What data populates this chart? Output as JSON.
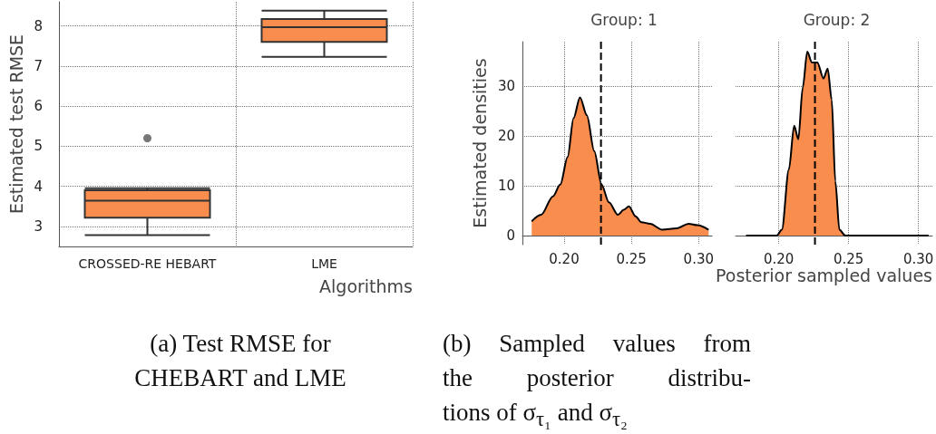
{
  "chart_data": [
    {
      "type": "box",
      "xlabel": "Algorithms",
      "ylabel": "Estimated test RMSE",
      "categories": [
        "CROSSED-RE HEBART",
        "LME"
      ],
      "color": "#f98d4e",
      "boxes": [
        {
          "low": 2.78,
          "q1": 3.22,
          "median": 3.64,
          "q3": 3.9,
          "high": 3.95,
          "outliers": [
            5.2
          ]
        },
        {
          "low": 7.23,
          "q1": 7.6,
          "median": 7.97,
          "q3": 8.17,
          "high": 8.38
        }
      ],
      "ylim": [
        2.5,
        8.6
      ],
      "yticks": [
        3,
        4,
        5,
        6,
        7,
        8
      ],
      "grid": true,
      "annotations": [
        "(a) Test RMSE for\nCHEBART and LME"
      ]
    },
    {
      "type": "area",
      "title": "Group: 1",
      "ylabel": "Estimated densities",
      "color": "#f98d4e",
      "marker": "none",
      "x": [
        0.1759,
        0.1829,
        0.1917,
        0.1972,
        0.2026,
        0.207,
        0.2118,
        0.2169,
        0.2224,
        0.2278,
        0.2333,
        0.24,
        0.2443,
        0.2482,
        0.2531,
        0.2574,
        0.264,
        0.2728,
        0.2838,
        0.2926,
        0.2991,
        0.3074
      ],
      "values": [
        2.9,
        4.2,
        7.9,
        10.3,
        15.8,
        23.6,
        27.8,
        24.2,
        17,
        10.3,
        6.7,
        4.2,
        5.2,
        5.9,
        3.9,
        2.7,
        2.4,
        1.2,
        1.5,
        2.4,
        2.1,
        1.2
      ],
      "xlim": [
        0.169,
        0.31
      ],
      "xticks": [
        {
          "value": 0.2,
          "label": "0.20"
        },
        {
          "value": 0.25,
          "label": "0.25"
        },
        {
          "value": 0.3,
          "label": "0.30"
        }
      ],
      "ylim": [
        -1.8,
        39
      ],
      "yticks": [
        0,
        10,
        20,
        30
      ],
      "grid": true,
      "ref_lines": [
        {
          "axis": "x",
          "value": 0.2274,
          "color": "#000000",
          "line_style": "dashed"
        }
      ],
      "annotations": [
        "(b) Sampled values from\nthe posterior distribu-\ntions of σ$_{τ₁}$ and σ$_{τ₂}$"
      ]
    },
    {
      "type": "area",
      "title": "Group: 2",
      "xlabel": "Posterior sampled values",
      "color": "#f98d4e",
      "marker": "none",
      "x": [
        0.1765,
        0.1985,
        0.2022,
        0.2072,
        0.211,
        0.214,
        0.2171,
        0.2204,
        0.2237,
        0.2276,
        0.232,
        0.235,
        0.2379,
        0.2405,
        0.2434,
        0.2477,
        0.3073
      ],
      "values": [
        0,
        0,
        1.2,
        13.3,
        22.1,
        19.4,
        29.7,
        37,
        34.8,
        34.8,
        31.6,
        33.6,
        27.3,
        10.9,
        1.2,
        0,
        0
      ],
      "xlim": [
        0.169,
        0.31
      ],
      "xticks": [
        {
          "value": 0.2,
          "label": "0.20"
        },
        {
          "value": 0.25,
          "label": "0.25"
        },
        {
          "value": 0.3,
          "label": "0.30"
        }
      ],
      "ylim": [
        -1.8,
        39
      ],
      "yticks": [
        0,
        10,
        20,
        30
      ],
      "grid": true,
      "tick_labels": "x",
      "ref_lines": [
        {
          "axis": "x",
          "value": 0.2259,
          "color": "#000000",
          "line_style": "dashed"
        }
      ]
    }
  ]
}
